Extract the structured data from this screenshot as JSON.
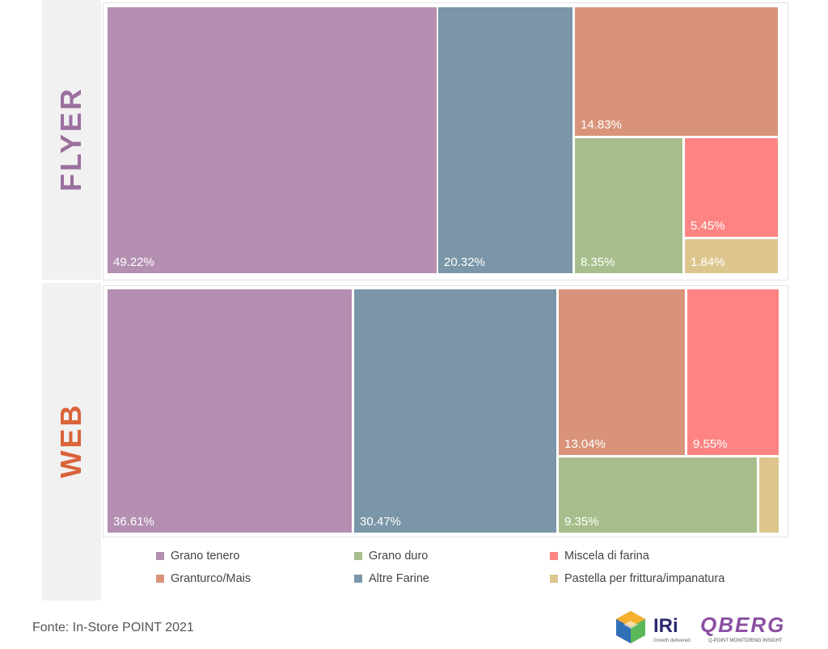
{
  "chart_data": [
    {
      "type": "treemap",
      "row_label": "FLYER",
      "tiles": [
        {
          "category": "Grano tenero",
          "value": 49.22,
          "label": "49.22%"
        },
        {
          "category": "Altre Farine",
          "value": 20.32,
          "label": "20.32%"
        },
        {
          "category": "Granturco/Mais",
          "value": 14.83,
          "label": "14.83%"
        },
        {
          "category": "Grano duro",
          "value": 8.35,
          "label": "8.35%"
        },
        {
          "category": "Miscela di farina",
          "value": 5.45,
          "label": "5.45%"
        },
        {
          "category": "Pastella per frittura/impanatura",
          "value": 1.84,
          "label": "1.84%"
        }
      ]
    },
    {
      "type": "treemap",
      "row_label": "WEB",
      "tiles": [
        {
          "category": "Grano tenero",
          "value": 36.61,
          "label": "36.61%"
        },
        {
          "category": "Altre Farine",
          "value": 30.47,
          "label": "30.47%"
        },
        {
          "category": "Granturco/Mais",
          "value": 13.04,
          "label": "13.04%"
        },
        {
          "category": "Miscela di farina",
          "value": 9.55,
          "label": "9.55%"
        },
        {
          "category": "Grano duro",
          "value": 9.35,
          "label": "9.35%"
        },
        {
          "category": "Pastella per frittura/impanatura",
          "value": 0.98,
          "label": ""
        }
      ]
    }
  ],
  "row_colors": {
    "FLYER": "#9c6f9e",
    "WEB": "#d9633a"
  },
  "legend": [
    {
      "label": "Grano tenero",
      "color": "#b48fb1"
    },
    {
      "label": "Grano duro",
      "color": "#a7be8c"
    },
    {
      "label": "Miscela di farina",
      "color": "#fe8483"
    },
    {
      "label": "Granturco/Mais",
      "color": "#d8937a"
    },
    {
      "label": "Altre Farine",
      "color": "#7a96a8"
    },
    {
      "label": "Pastella per frittura/impanatura",
      "color": "#dcc68e"
    }
  ],
  "source": "Fonte: In-Store POINT 2021",
  "logos": {
    "iri": "IRi",
    "iri_tagline": "Growth delivered.",
    "qberg": "QBERG",
    "qberg_tagline": "Q-POINT MONITORING INSIGHT"
  }
}
